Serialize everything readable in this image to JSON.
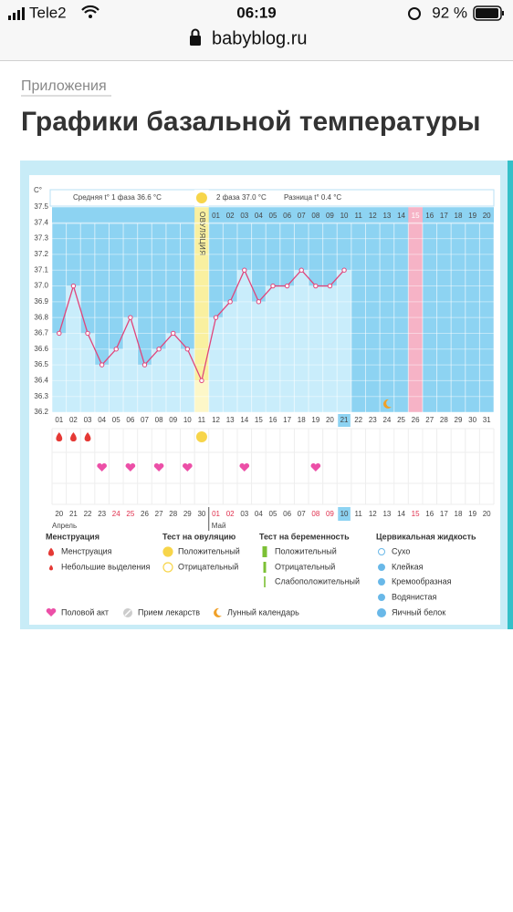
{
  "status_bar": {
    "carrier": "Tele2",
    "time": "06:19",
    "battery": "92 %"
  },
  "url": "babyblog.ru",
  "breadcrumb": "Приложения",
  "title": "Графики базальной температуры",
  "chart_data": {
    "type": "line",
    "y_unit": "С°",
    "phase1": "Средняя t° 1 фаза 36.6 °C",
    "phase2": "2 фаза 37.0 °C",
    "difference": "Разница t° 0.4 °C",
    "ovulation": "ОВУЛЯЦИЯ",
    "ovulation_day": "11",
    "categories": [
      "01",
      "02",
      "03",
      "04",
      "05",
      "06",
      "07",
      "08",
      "09",
      "10",
      "11",
      "12",
      "13",
      "14",
      "15",
      "16",
      "17",
      "18",
      "19",
      "20",
      "21",
      "22",
      "23",
      "24",
      "25",
      "26",
      "27",
      "28",
      "29",
      "30",
      "31"
    ],
    "values": [
      36.7,
      37.0,
      36.7,
      36.5,
      36.6,
      36.8,
      36.5,
      36.6,
      36.7,
      36.6,
      36.4,
      36.8,
      36.9,
      37.1,
      36.9,
      37.0,
      37.0,
      37.1,
      37.0,
      37.0,
      37.1,
      null,
      null,
      null,
      null,
      null,
      null,
      null,
      null,
      null,
      null
    ],
    "current_day": "21",
    "phase2_days": [
      "01",
      "02",
      "03",
      "04",
      "05",
      "06",
      "07",
      "08",
      "09",
      "10",
      "11",
      "12",
      "13",
      "14",
      "15",
      "16",
      "17",
      "18",
      "19",
      "20"
    ],
    "highlight_phase2_day": "15",
    "dates": [
      {
        "label": "20",
        "color": "#444"
      },
      {
        "label": "21",
        "color": "#444"
      },
      {
        "label": "22",
        "color": "#444"
      },
      {
        "label": "23",
        "color": "#444"
      },
      {
        "label": "24",
        "color": "#e0304e"
      },
      {
        "label": "25",
        "color": "#e0304e"
      },
      {
        "label": "26",
        "color": "#444"
      },
      {
        "label": "27",
        "color": "#444"
      },
      {
        "label": "28",
        "color": "#444"
      },
      {
        "label": "29",
        "color": "#444"
      },
      {
        "label": "30",
        "color": "#444"
      },
      {
        "label": "01",
        "color": "#e0304e"
      },
      {
        "label": "02",
        "color": "#e0304e"
      },
      {
        "label": "03",
        "color": "#444"
      },
      {
        "label": "04",
        "color": "#444"
      },
      {
        "label": "05",
        "color": "#444"
      },
      {
        "label": "06",
        "color": "#444"
      },
      {
        "label": "07",
        "color": "#444"
      },
      {
        "label": "08",
        "color": "#e0304e"
      },
      {
        "label": "09",
        "color": "#e0304e"
      },
      {
        "label": "10",
        "color": "#444"
      },
      {
        "label": "11",
        "color": "#444"
      },
      {
        "label": "12",
        "color": "#444"
      },
      {
        "label": "13",
        "color": "#444"
      },
      {
        "label": "14",
        "color": "#444"
      },
      {
        "label": "15",
        "color": "#e0304e"
      },
      {
        "label": "16",
        "color": "#444"
      },
      {
        "label": "17",
        "color": "#444"
      },
      {
        "label": "18",
        "color": "#444"
      },
      {
        "label": "19",
        "color": "#444"
      },
      {
        "label": "20",
        "color": "#444"
      }
    ],
    "today_date": "10",
    "months": [
      "Апрель",
      "Май"
    ],
    "ylim": [
      36.2,
      37.5
    ],
    "yticks": [
      36.2,
      36.3,
      36.4,
      36.5,
      36.6,
      36.7,
      36.8,
      36.9,
      {
        "value": 37,
        "label": "37.0"
      },
      37.1,
      37.2,
      37.3,
      37.4,
      37.5
    ],
    "color": "#e0457b",
    "bar_color": "#c9edfb",
    "background_color": "#8dd3f2",
    "markers": [
      {
        "type": "menstruation",
        "day": "01"
      },
      {
        "type": "menstruation",
        "day": "02"
      },
      {
        "type": "menstruation",
        "day": "03"
      },
      {
        "type": "ovulation_test",
        "day": "11"
      },
      {
        "type": "intercourse",
        "day": "04"
      },
      {
        "type": "intercourse",
        "day": "06"
      },
      {
        "type": "intercourse",
        "day": "08"
      },
      {
        "type": "intercourse",
        "day": "10"
      },
      {
        "type": "intercourse",
        "day": "14"
      },
      {
        "type": "intercourse",
        "day": "19"
      },
      {
        "type": "moon",
        "day": "24"
      }
    ]
  },
  "legend": {
    "sections": [
      {
        "title": "Менструация",
        "items": [
          "Менструация",
          "Небольшие выделения"
        ]
      },
      {
        "title": "Тест на овуляцию",
        "items": [
          "Положительный",
          "Отрицательный"
        ]
      },
      {
        "title": "Тест на беременность",
        "items": [
          "Положительный",
          "Отрицательный",
          "Слабоположительный"
        ]
      },
      {
        "title": "Цервикальная жидкость",
        "items": [
          "Сухо",
          "Клейкая",
          "Кремообразная",
          "Водянистая",
          "Яичный белок"
        ]
      }
    ],
    "extras": [
      "Половой акт",
      "Прием лекарств",
      "Лунный календарь"
    ]
  }
}
